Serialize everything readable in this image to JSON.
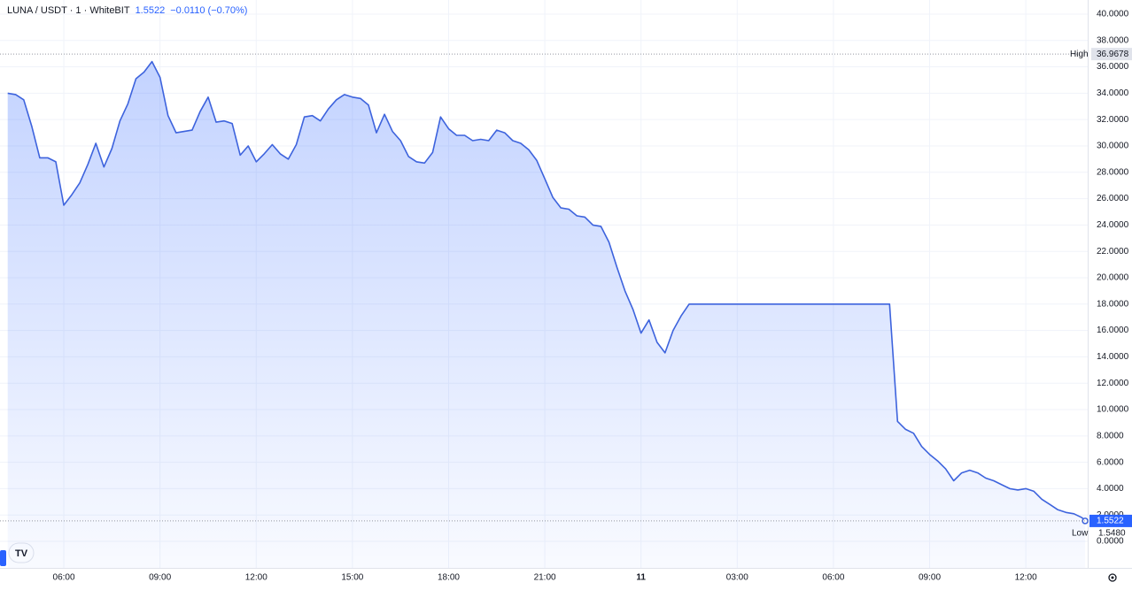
{
  "chart_data": {
    "type": "area",
    "symbol": "LUNA / USDT · 1 · WhiteBIT",
    "last": 1.5522,
    "change": "−0.0110 (−0.70%)",
    "high": {
      "name": "High",
      "value": 36.9678
    },
    "low": {
      "name": "Low",
      "value": {
        "value": 1.548,
        "label": "1.5480"
      }
    },
    "color": "#3d63dd",
    "grid": true,
    "xlim": [
      4.01,
      37.93
    ],
    "ylim": [
      -2.01,
      41.07
    ],
    "xticks": [
      {
        "value": 6,
        "label": "06:00"
      },
      {
        "value": 9,
        "label": "09:00"
      },
      {
        "value": 12,
        "label": "12:00"
      },
      {
        "value": 15,
        "label": "15:00"
      },
      {
        "value": 18,
        "label": "18:00"
      },
      {
        "value": 21,
        "label": "21:00"
      },
      {
        "value": 24,
        "label": "11"
      },
      {
        "value": 27,
        "label": "03:00"
      },
      {
        "value": 30,
        "label": "06:00"
      },
      {
        "value": 33,
        "label": "09:00"
      },
      {
        "value": 36,
        "label": "12:00"
      }
    ],
    "yticks": [
      {
        "value": 0,
        "label": "0.0000"
      },
      {
        "value": 2,
        "label": "2.0000"
      },
      {
        "value": 4,
        "label": "4.0000"
      },
      {
        "value": 6,
        "label": "6.0000"
      },
      {
        "value": 8,
        "label": "8.0000"
      },
      {
        "value": 10,
        "label": "10.0000"
      },
      {
        "value": 12,
        "label": "12.0000"
      },
      {
        "value": 14,
        "label": "14.0000"
      },
      {
        "value": 16,
        "label": "16.0000"
      },
      {
        "value": 18,
        "label": "18.0000"
      },
      {
        "value": 20,
        "label": "20.0000"
      },
      {
        "value": 22,
        "label": "22.0000"
      },
      {
        "value": 24,
        "label": "24.0000"
      },
      {
        "value": 26,
        "label": "26.0000"
      },
      {
        "value": 28,
        "label": "28.0000"
      },
      {
        "value": 30,
        "label": "30.0000"
      },
      {
        "value": 32,
        "label": "32.0000"
      },
      {
        "value": 34,
        "label": "34.0000"
      },
      {
        "value": 36,
        "label": "36.0000"
      },
      {
        "value": 38,
        "label": "38.0000"
      },
      {
        "value": 40,
        "label": "40.0000"
      }
    ],
    "x": [
      4.25,
      4.5,
      4.75,
      5,
      5.25,
      5.5,
      5.75,
      6,
      6.25,
      6.5,
      6.75,
      7,
      7.25,
      7.5,
      7.75,
      8,
      8.25,
      8.5,
      8.75,
      9,
      9.25,
      9.5,
      9.75,
      10,
      10.25,
      10.5,
      10.75,
      11,
      11.25,
      11.5,
      11.75,
      12,
      12.25,
      12.5,
      12.75,
      13,
      13.25,
      13.5,
      13.75,
      14,
      14.25,
      14.5,
      14.75,
      15,
      15.25,
      15.5,
      15.75,
      16,
      16.25,
      16.5,
      16.75,
      17,
      17.25,
      17.5,
      17.75,
      18,
      18.25,
      18.5,
      18.75,
      19,
      19.25,
      19.5,
      19.75,
      20,
      20.25,
      20.5,
      20.75,
      21,
      21.25,
      21.5,
      21.75,
      22,
      22.25,
      22.5,
      22.75,
      23,
      23.25,
      23.5,
      23.75,
      24,
      24.25,
      24.5,
      24.75,
      25,
      25.25,
      25.5,
      31.75,
      32,
      32.25,
      32.5,
      32.75,
      33,
      33.25,
      33.5,
      33.75,
      34,
      34.25,
      34.5,
      34.75,
      35,
      35.25,
      35.5,
      35.75,
      36,
      36.25,
      36.5,
      36.75,
      37,
      37.25,
      37.5,
      37.75,
      37.85
    ],
    "values": [
      34.0,
      33.9,
      33.5,
      31.5,
      29.1,
      29.1,
      28.8,
      25.5,
      26.3,
      27.2,
      28.6,
      30.2,
      28.4,
      29.8,
      31.9,
      33.2,
      35.1,
      35.6,
      36.4,
      35.2,
      32.3,
      31.0,
      31.1,
      31.2,
      32.6,
      33.7,
      31.8,
      31.9,
      31.7,
      29.3,
      30.0,
      28.8,
      29.4,
      30.1,
      29.4,
      29.0,
      30.1,
      32.2,
      32.3,
      31.9,
      32.8,
      33.5,
      33.9,
      33.7,
      33.6,
      33.1,
      31.0,
      32.4,
      31.1,
      30.4,
      29.2,
      28.8,
      28.7,
      29.5,
      32.2,
      31.3,
      30.8,
      30.8,
      30.4,
      30.5,
      30.4,
      31.2,
      31.0,
      30.4,
      30.2,
      29.7,
      28.9,
      27.5,
      26.1,
      25.3,
      25.2,
      24.7,
      24.6,
      24.0,
      23.9,
      22.7,
      20.8,
      19.0,
      17.6,
      15.8,
      16.8,
      15.1,
      14.3,
      16.0,
      17.1,
      18.0,
      18.0,
      9.1,
      8.5,
      8.2,
      7.2,
      6.6,
      6.1,
      5.5,
      4.6,
      5.2,
      5.4,
      5.2,
      4.8,
      4.6,
      4.3,
      4.0,
      3.9,
      4.0,
      3.8,
      3.2,
      2.8,
      2.4,
      2.2,
      2.1,
      1.8,
      1.5522
    ]
  }
}
